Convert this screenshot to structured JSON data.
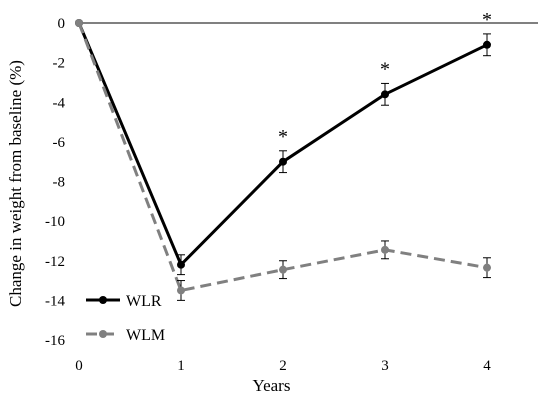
{
  "chart_data": {
    "type": "line",
    "title": "",
    "xlabel": "Years",
    "ylabel": "Change in weight from baseline (%)",
    "x": [
      0,
      1,
      2,
      3,
      4
    ],
    "xlim": [
      0,
      4.5
    ],
    "ylim": [
      -16,
      0
    ],
    "xticks": [
      "0",
      "1",
      "2",
      "3",
      "4"
    ],
    "yticks": [
      "0",
      "-2",
      "-4",
      "-6",
      "-8",
      "-10",
      "-12",
      "-14",
      "-16"
    ],
    "grid": false,
    "legend_position": "bottom-left",
    "series": [
      {
        "name": "WLR",
        "values": [
          0,
          -12.2,
          -7.0,
          -3.6,
          -1.1
        ],
        "error": [
          0,
          0.5,
          0.55,
          0.55,
          0.55
        ],
        "color": "#000000",
        "style": "solid"
      },
      {
        "name": "WLM",
        "values": [
          0,
          -13.5,
          -12.45,
          -11.45,
          -12.35
        ],
        "error": [
          0,
          0.5,
          0.45,
          0.45,
          0.5
        ],
        "color": "#808080",
        "style": "dashed"
      }
    ],
    "annotations": [
      {
        "text": "*",
        "x": 2
      },
      {
        "text": "*",
        "x": 3
      },
      {
        "text": "*",
        "x": 4
      }
    ]
  }
}
